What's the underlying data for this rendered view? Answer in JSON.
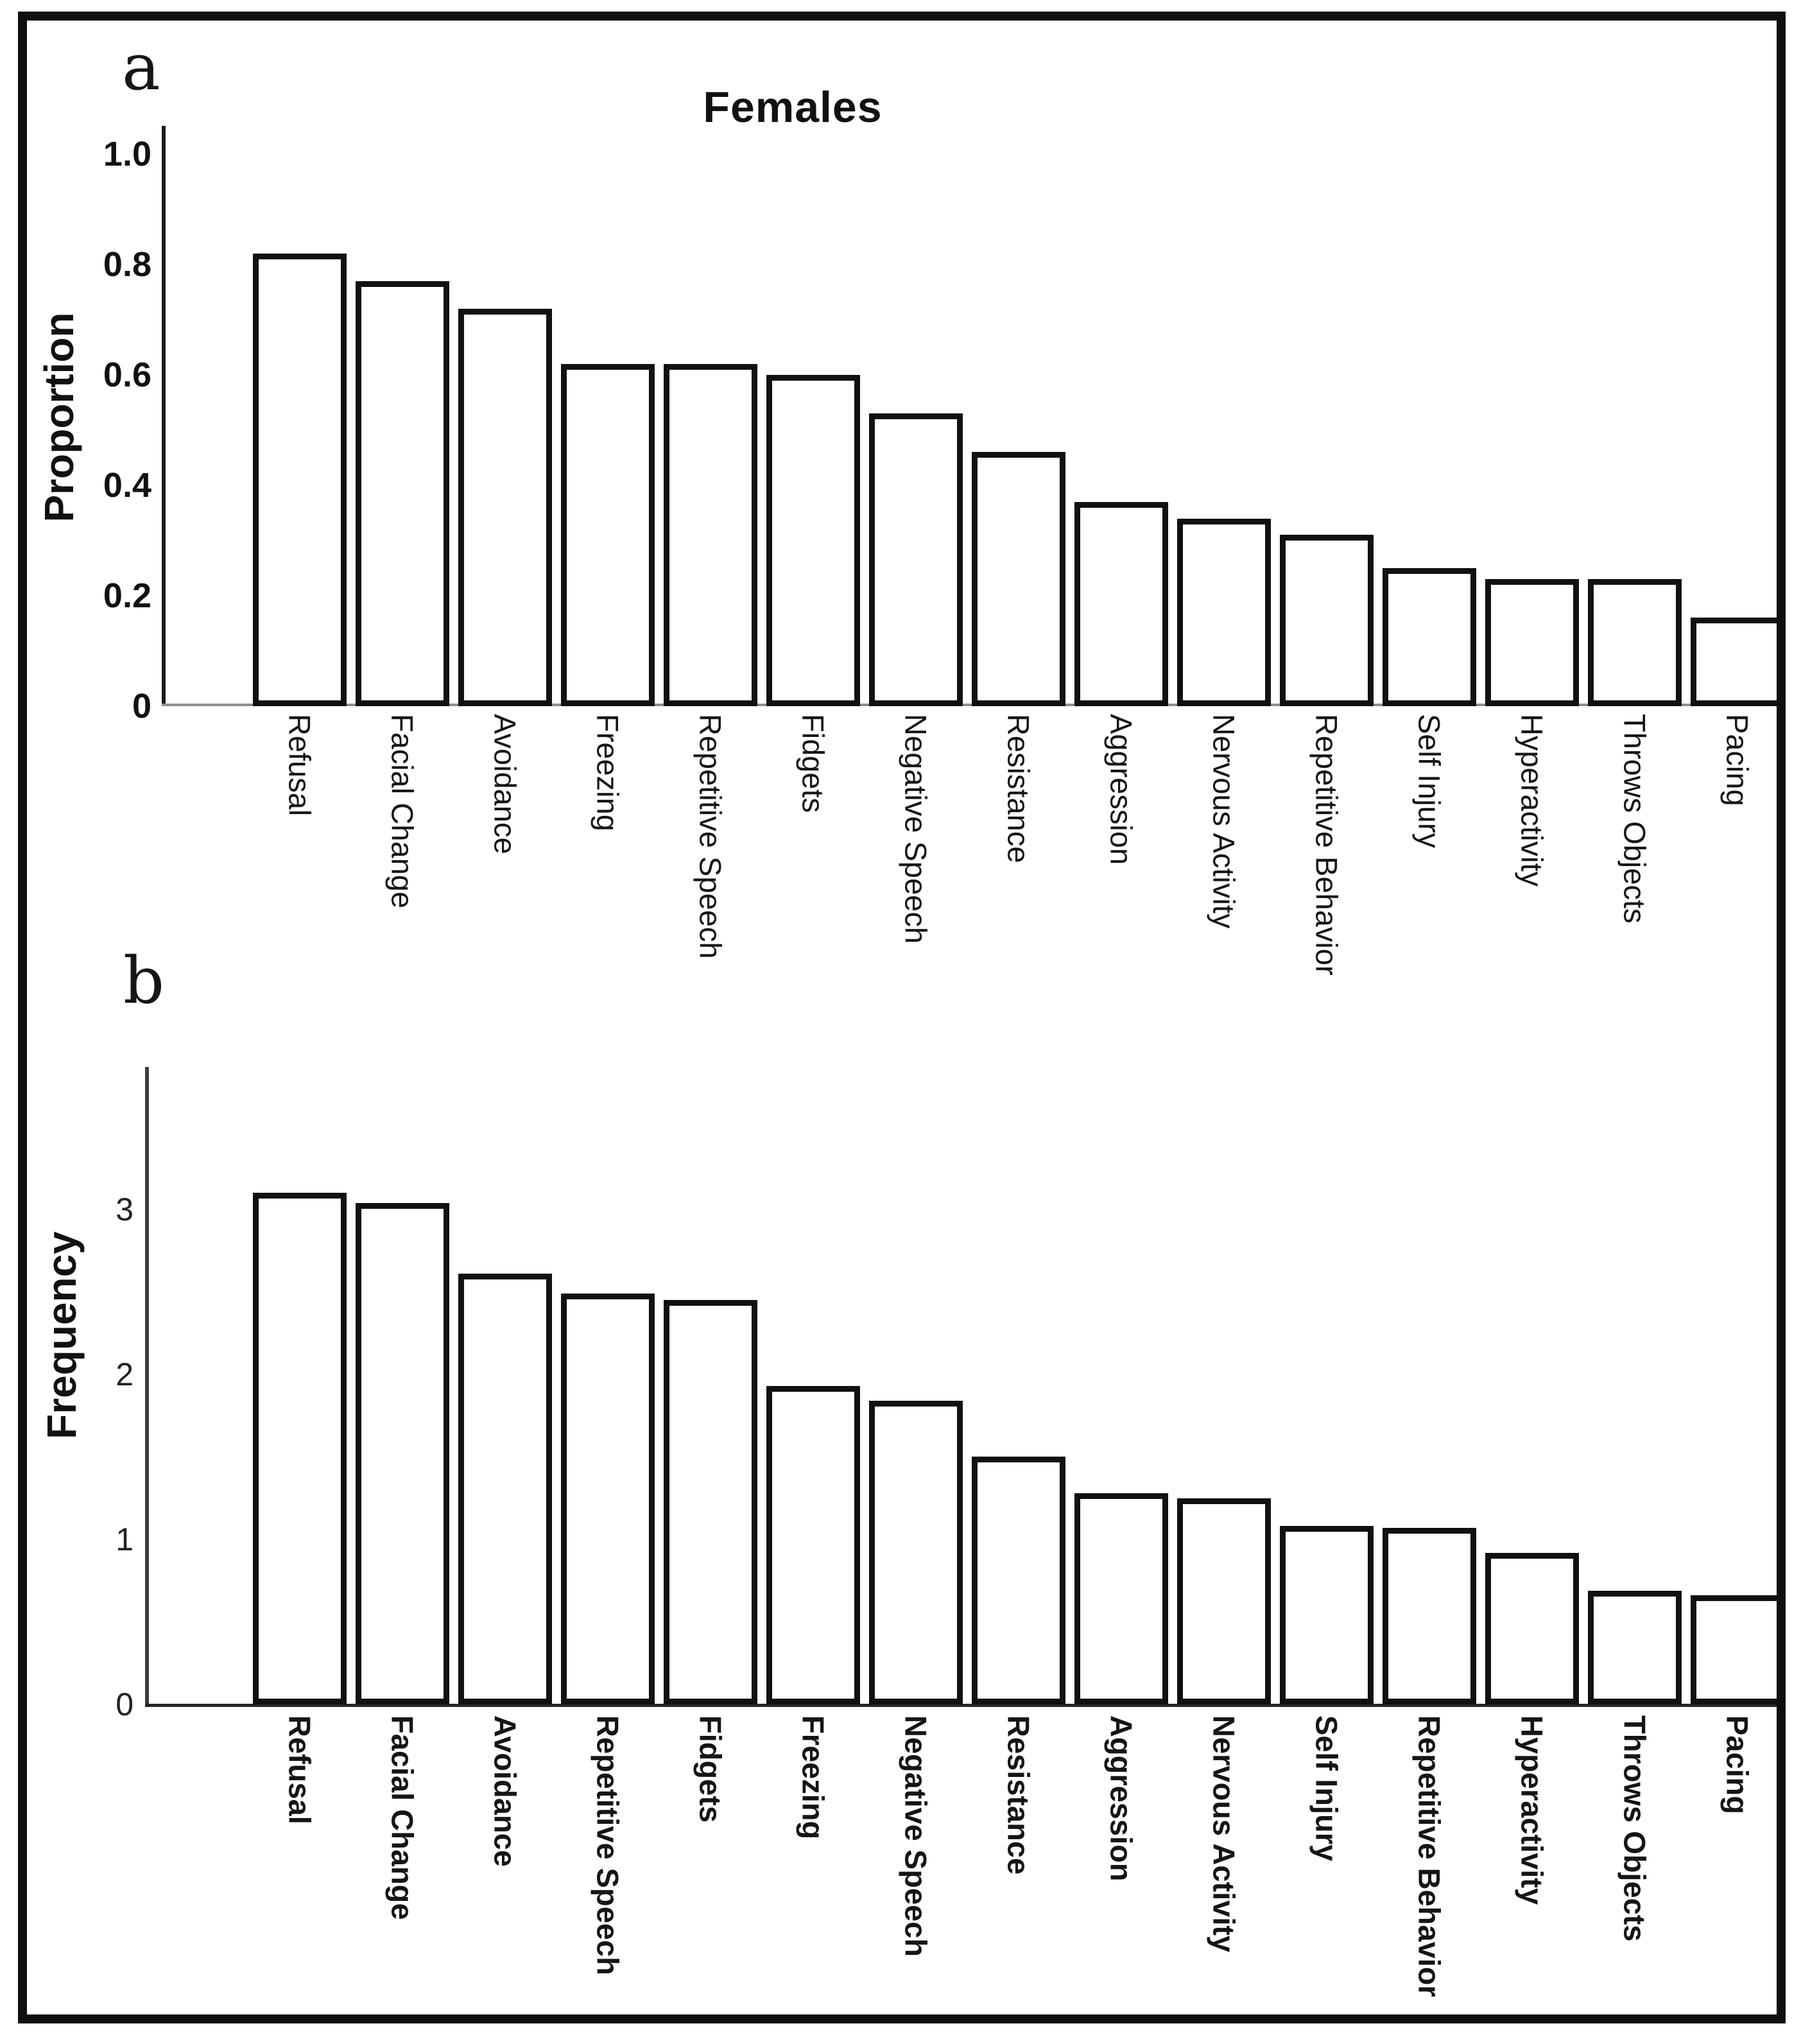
{
  "figure": {
    "background": "#ffffff",
    "border_color": "#0f0f0f",
    "bar_fill": "#ffffff",
    "bar_border": "#111111",
    "panels": [
      {
        "id": "a",
        "label": "a"
      },
      {
        "id": "b",
        "label": "b"
      }
    ]
  },
  "chart_data": [
    {
      "panel": "a",
      "type": "bar",
      "title": "Females",
      "ylabel": "Proportion",
      "xlabel": "",
      "ylim": [
        0,
        1.0
      ],
      "yticks": [
        "1.0",
        "0.8",
        "0.6",
        "0.4",
        "0.2",
        "0"
      ],
      "ytick_values": [
        1.0,
        0.8,
        0.6,
        0.4,
        0.2,
        0
      ],
      "grid": false,
      "legend": null,
      "categories": [
        "Refusal",
        "Facial Change",
        "Avoidance",
        "Freezing",
        "Repetitive Speech",
        "Fidgets",
        "Negative Speech",
        "Resistance",
        "Aggression",
        "Nervous Activity",
        "Repetitive Behavior",
        "Self Injury",
        "Hyperactivity",
        "Throws Objects",
        "Pacing"
      ],
      "values": [
        0.82,
        0.77,
        0.72,
        0.62,
        0.62,
        0.6,
        0.53,
        0.46,
        0.37,
        0.34,
        0.31,
        0.25,
        0.23,
        0.23,
        0.16
      ]
    },
    {
      "panel": "b",
      "type": "bar",
      "title": "",
      "ylabel": "Frequency",
      "xlabel": "",
      "ylim": [
        0,
        3.9
      ],
      "yticks": [
        "3",
        "2",
        "1",
        "0"
      ],
      "ytick_values": [
        3,
        2,
        1,
        0
      ],
      "grid": false,
      "legend": null,
      "categories": [
        "Refusal",
        "Facial Change",
        "Avoidance",
        "Repetitive Speech",
        "Fidgets",
        "Freezing",
        "Negative Speech",
        "Resistance",
        "Aggression",
        "Nervous Activity",
        "Self Injury",
        "Repetitive Behavior",
        "Hyperactivity",
        "Throws Objects",
        "Pacing"
      ],
      "values": [
        3.1,
        3.04,
        2.61,
        2.49,
        2.45,
        1.93,
        1.84,
        1.5,
        1.28,
        1.25,
        1.08,
        1.07,
        0.92,
        0.69,
        0.66
      ]
    }
  ]
}
